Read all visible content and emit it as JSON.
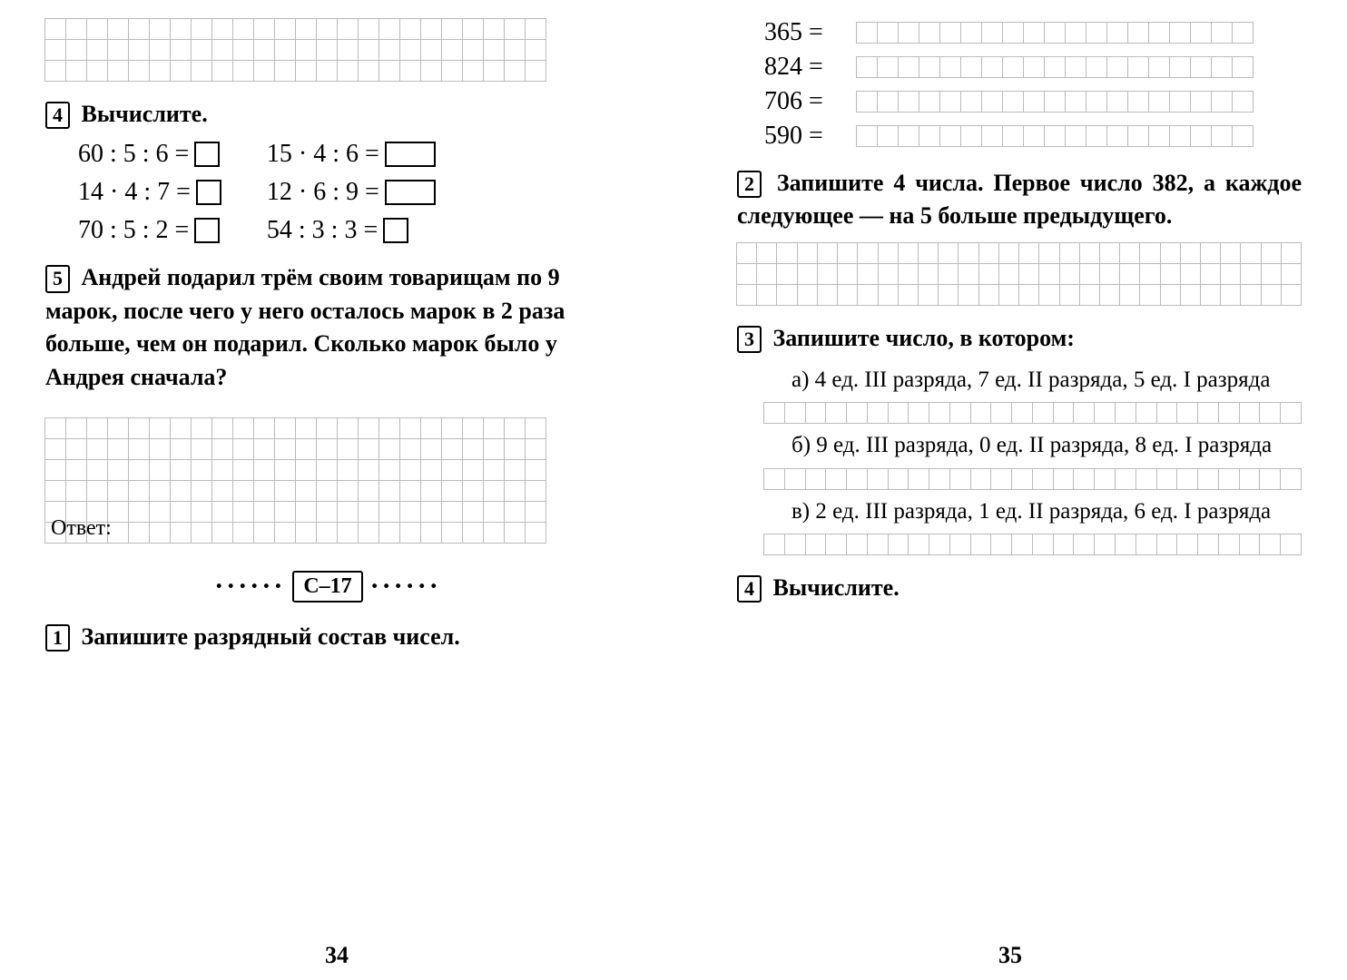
{
  "left": {
    "pageNumber": "34",
    "topGrid": {
      "rows": 3,
      "cols": 24
    },
    "task4": {
      "num": "4",
      "title": "Вычислите.",
      "colA": [
        "60 : 5 : 6 =",
        "14 · 4 : 7 =",
        "70 : 5 : 2 ="
      ],
      "colB": [
        "15 · 4 : 6 =",
        "12 · 6 : 9 =",
        "54 : 3 : 3 ="
      ]
    },
    "task5": {
      "num": "5",
      "text": "Андрей подарил трём своим товарищам по 9 марок, после чего у него осталось марок в 2 раза больше, чем он подарил. Сколько марок было у Андрея сначала?"
    },
    "answerGrid": {
      "rows": 6,
      "cols": 24
    },
    "answerLabel": "Ответ:",
    "section": {
      "dots": "······",
      "label": "С–17"
    },
    "task1": {
      "num": "1",
      "title": "Запишите разрядный состав чисел."
    }
  },
  "right": {
    "pageNumber": "35",
    "equations": [
      "365 =",
      "824 =",
      "706 =",
      "590 ="
    ],
    "eqGridCols": 19,
    "task2": {
      "num": "2",
      "text": "Запишите 4 числа. Первое число 382, а каждое следующее — на 5 больше предыдущего."
    },
    "task2Grid": {
      "rows": 3,
      "cols": 28
    },
    "task3": {
      "num": "3",
      "title": "Запишите число, в котором:",
      "items": [
        {
          "label": "а) 4 ед. III разряда, 7 ед. II разряда, 5 ед. I разряда"
        },
        {
          "label": "б) 9 ед. III разряда, 0 ед. II разряда, 8 ед. I разряда"
        },
        {
          "label": "в) 2 ед. III разряда, 1 ед. II разряда, 6 ед. I разряда"
        }
      ],
      "stripCols": 26
    },
    "task4": {
      "num": "4",
      "title": "Вычислите."
    }
  },
  "style": {
    "cellSize": 24,
    "gridBorder": "#bbbbbb",
    "textColor": "#000000",
    "fontFamily": "Georgia, Times New Roman, serif"
  }
}
